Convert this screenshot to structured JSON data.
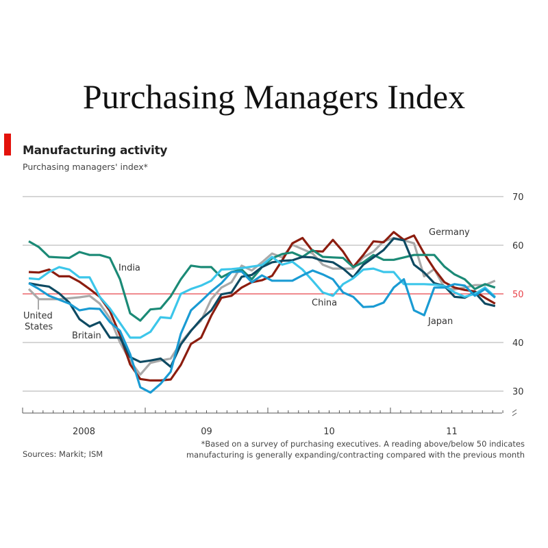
{
  "page_title": "Purchasing Managers Index",
  "chart_data": {
    "type": "line",
    "title": "Manufacturing activity",
    "subtitle": "Purchasing managers' index*",
    "x_start": "2008-01",
    "x_end": "2011-11",
    "x_frequency": "monthly",
    "x_tick_labels": [
      "2008",
      "09",
      "10",
      "11"
    ],
    "y_ticks": [
      30,
      40,
      50,
      60,
      70
    ],
    "ylim": [
      30,
      70
    ],
    "y_axis_position": "right",
    "reference_line": {
      "value": 50,
      "color": "#e8434a"
    },
    "grid": true,
    "axis_break_symbol": true,
    "series": [
      {
        "name": "United States",
        "color": "#a9a9a9",
        "values": [
          51,
          48.9,
          48.9,
          48.9,
          49.1,
          49.3,
          49.6,
          48,
          45,
          40,
          36.2,
          33.4,
          35.8,
          36.3,
          36.7,
          40,
          42.5,
          44.5,
          48.9,
          51.3,
          52.4,
          55.8,
          54.8,
          56.5,
          58.3,
          57.5,
          60.1,
          59.2,
          58.3,
          56,
          55.2,
          55.2,
          55.2,
          57.5,
          58.7,
          60.8,
          61.5,
          61,
          60.4,
          53.6,
          55.1,
          51.3,
          50.9,
          51.3,
          51.8,
          51.8,
          52.7
        ]
      },
      {
        "name": "Germany",
        "color": "#8c1d0f",
        "values": [
          54.5,
          54.4,
          55,
          53.6,
          53.6,
          52.5,
          51,
          49.4,
          46.5,
          41.5,
          35.5,
          32.5,
          32.2,
          32.2,
          32.4,
          35.4,
          39.7,
          41,
          45.5,
          49.2,
          49.6,
          51.3,
          52.4,
          52.8,
          53.7,
          56.9,
          60.4,
          61.5,
          58.8,
          58.7,
          61.1,
          58.7,
          55.5,
          58,
          60.8,
          60.6,
          62.7,
          61.1,
          62,
          58.3,
          55.1,
          52.4,
          51.3,
          50.8,
          50.5,
          49.2,
          48
        ]
      },
      {
        "name": "India",
        "color": "#1b8a76",
        "values": [
          60.8,
          59.6,
          57.6,
          57.5,
          57.4,
          58.6,
          58,
          58,
          57.4,
          53,
          46,
          44.5,
          46.8,
          47,
          49.5,
          53,
          55.8,
          55.5,
          55.5,
          53.4,
          54.5,
          55,
          53,
          55.5,
          57.3,
          58.2,
          58.5,
          57.6,
          59,
          57.6,
          57.5,
          57.4,
          55.5,
          56.5,
          58,
          57,
          57,
          57.5,
          58,
          58,
          58,
          55.6,
          54,
          53,
          51,
          52,
          51.3
        ]
      },
      {
        "name": "Britain",
        "color": "#0e4a62",
        "values": [
          52.2,
          51.8,
          51.5,
          50.1,
          48.2,
          44.8,
          43.3,
          44.2,
          41,
          41,
          37,
          36,
          36.3,
          36.7,
          35,
          39.6,
          42.4,
          44.8,
          46.6,
          49.9,
          50.3,
          53.5,
          53.9,
          55.5,
          56.5,
          56.8,
          56.9,
          57.6,
          57.5,
          56.8,
          56.5,
          55.2,
          53.4,
          56,
          57.5,
          59,
          61.4,
          61,
          56,
          54.4,
          52.2,
          51.6,
          49.4,
          49.2,
          50.3,
          48,
          47.5
        ]
      },
      {
        "name": "China",
        "color": "#3cc6ea",
        "values": [
          53.2,
          53,
          54.5,
          55.5,
          55,
          53.4,
          53.4,
          49.4,
          47,
          44,
          41,
          41,
          42.2,
          45.2,
          45,
          50,
          51,
          51.7,
          52.7,
          55,
          55.1,
          55.3,
          55.6,
          55.9,
          57.6,
          56,
          56.6,
          55,
          52.7,
          50.3,
          49.6,
          52,
          53.2,
          55,
          55.2,
          54.5,
          54.5,
          52,
          52,
          52,
          51.9,
          51.6,
          50.3,
          49.4,
          50,
          51.3,
          49.4
        ]
      },
      {
        "name": "Japan",
        "color": "#1a9bd3",
        "values": [
          52.2,
          51,
          49.6,
          48.8,
          48,
          46.6,
          47,
          46.9,
          44.2,
          42.4,
          37.6,
          30.8,
          29.7,
          31.5,
          34,
          41.8,
          46.6,
          48.5,
          50.5,
          52.2,
          54.5,
          54.6,
          52.4,
          53.8,
          52.7,
          52.7,
          52.7,
          53.8,
          54.8,
          54,
          53,
          50.3,
          49.4,
          47.3,
          47.4,
          48.2,
          51.3,
          53,
          46.6,
          45.6,
          51.3,
          51.3,
          52,
          51.7,
          49.6,
          51,
          49.2
        ]
      }
    ],
    "sources": "Sources: Markit; ISM",
    "footnote": "*Based on a survey of purchasing executives. A reading above/below 50 indicates manufacturing is generally expanding/contracting compared with the previous month"
  }
}
